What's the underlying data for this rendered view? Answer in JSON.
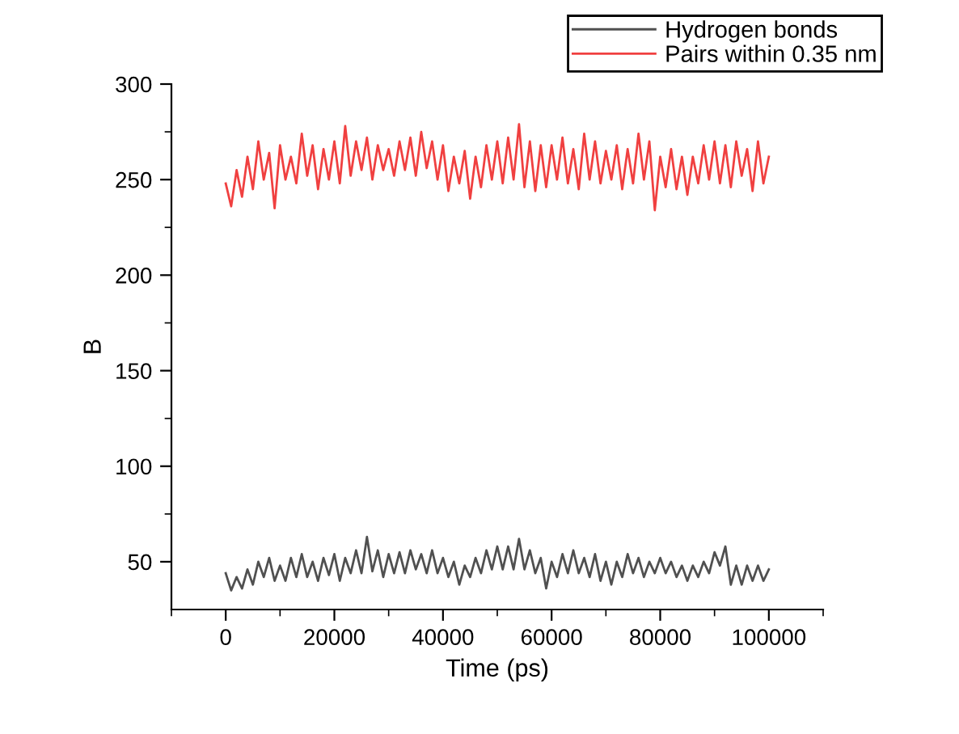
{
  "chart_data": {
    "type": "line",
    "xlabel": "Time (ps)",
    "ylabel": "B",
    "x": [
      0,
      1000,
      2000,
      3000,
      4000,
      5000,
      6000,
      7000,
      8000,
      9000,
      10000,
      11000,
      12000,
      13000,
      14000,
      15000,
      16000,
      17000,
      18000,
      19000,
      20000,
      21000,
      22000,
      23000,
      24000,
      25000,
      26000,
      27000,
      28000,
      29000,
      30000,
      31000,
      32000,
      33000,
      34000,
      35000,
      36000,
      37000,
      38000,
      39000,
      40000,
      41000,
      42000,
      43000,
      44000,
      45000,
      46000,
      47000,
      48000,
      49000,
      50000,
      51000,
      52000,
      53000,
      54000,
      55000,
      56000,
      57000,
      58000,
      59000,
      60000,
      61000,
      62000,
      63000,
      64000,
      65000,
      66000,
      67000,
      68000,
      69000,
      70000,
      71000,
      72000,
      73000,
      74000,
      75000,
      76000,
      77000,
      78000,
      79000,
      80000,
      81000,
      82000,
      83000,
      84000,
      85000,
      86000,
      87000,
      88000,
      89000,
      90000,
      91000,
      92000,
      93000,
      94000,
      95000,
      96000,
      97000,
      98000,
      99000,
      100000
    ],
    "series": [
      {
        "name": "Hydrogen bonds",
        "color": "#505050",
        "values": [
          44,
          35,
          42,
          36,
          46,
          38,
          50,
          42,
          52,
          40,
          48,
          40,
          52,
          42,
          54,
          42,
          50,
          40,
          52,
          43,
          54,
          40,
          52,
          44,
          56,
          44,
          63,
          45,
          56,
          42,
          54,
          44,
          55,
          44,
          56,
          46,
          54,
          44,
          56,
          44,
          52,
          42,
          50,
          38,
          48,
          42,
          52,
          44,
          56,
          46,
          58,
          46,
          58,
          46,
          62,
          46,
          56,
          44,
          52,
          36,
          50,
          42,
          54,
          44,
          56,
          44,
          52,
          42,
          54,
          40,
          50,
          38,
          50,
          42,
          54,
          44,
          52,
          42,
          50,
          44,
          52,
          44,
          50,
          42,
          48,
          40,
          48,
          42,
          50,
          44,
          55,
          48,
          58,
          38,
          48,
          38,
          48,
          40,
          48,
          40,
          46
        ]
      },
      {
        "name": "Pairs within 0.35 nm",
        "color": "#f04040",
        "values": [
          248,
          236,
          255,
          241,
          262,
          245,
          270,
          250,
          264,
          235,
          268,
          250,
          262,
          248,
          274,
          252,
          268,
          245,
          266,
          250,
          270,
          248,
          278,
          252,
          270,
          255,
          272,
          250,
          268,
          255,
          266,
          252,
          270,
          255,
          272,
          252,
          275,
          256,
          270,
          250,
          268,
          244,
          262,
          248,
          265,
          240,
          262,
          246,
          268,
          250,
          270,
          248,
          272,
          250,
          279,
          246,
          270,
          244,
          268,
          246,
          268,
          250,
          272,
          248,
          266,
          245,
          274,
          250,
          270,
          248,
          265,
          250,
          268,
          245,
          266,
          248,
          274,
          250,
          270,
          234,
          262,
          246,
          266,
          245,
          262,
          242,
          262,
          248,
          268,
          250,
          270,
          248,
          268,
          246,
          270,
          252,
          266,
          244,
          270,
          248,
          262
        ]
      }
    ],
    "xlim": [
      -10000,
      110000
    ],
    "xticks": [
      0,
      20000,
      40000,
      60000,
      80000,
      100000,
      {
        "value": -10000,
        "label": null
      },
      {
        "value": 10000,
        "label": null
      },
      {
        "value": 30000,
        "label": null
      },
      {
        "value": 50000,
        "label": null
      },
      {
        "value": 70000,
        "label": null
      },
      {
        "value": 90000,
        "label": null
      },
      {
        "value": 110000,
        "label": null
      }
    ],
    "ylim": [
      25,
      300
    ],
    "yticks": [
      50,
      100,
      150,
      200,
      250,
      300,
      {
        "value": 75,
        "label": null
      },
      {
        "value": 125,
        "label": null
      },
      {
        "value": 175,
        "label": null
      },
      {
        "value": 225,
        "label": null
      },
      {
        "value": 275,
        "label": null
      }
    ],
    "legend": "top right",
    "grid": false,
    "marker": "none",
    "line_style": "solid"
  }
}
